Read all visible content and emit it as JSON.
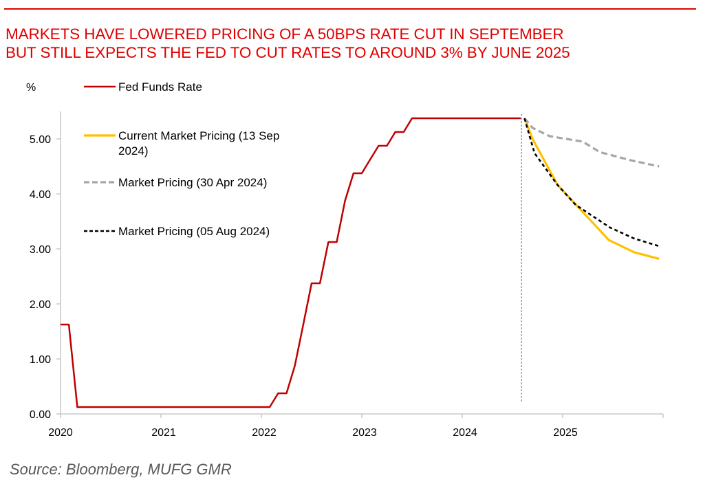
{
  "header": {
    "title_lines": [
      "MARKETS HAVE LOWERED PRICING OF A 50BPS RATE CUT IN SEPTEMBER",
      "BUT STILL EXPECTS THE FED TO CUT RATES TO AROUND 3% BY JUNE 2025"
    ],
    "accent_color": "#e00000"
  },
  "footer": {
    "source": "Source: Bloomberg, MUFG GMR"
  },
  "chart_data": {
    "type": "line",
    "title": "MARKETS HAVE LOWERED PRICING OF A 50BPS RATE CUT IN SEPTEMBER BUT STILL EXPECTS THE FED TO CUT RATES TO AROUND 3% BY JUNE 2025",
    "xlabel": "",
    "ylabel": "%",
    "xlim": [
      2020,
      2026
    ],
    "ylim": [
      0,
      5.5
    ],
    "x_ticks": [
      2020,
      2021,
      2022,
      2023,
      2024,
      2025,
      2026
    ],
    "x_tick_labels": [
      "2020",
      "2021",
      "2022",
      "2023",
      "2024",
      "2025",
      ""
    ],
    "y_ticks": [
      0,
      1,
      2,
      3,
      4,
      5
    ],
    "y_tick_labels": [
      "0.00",
      "1.00",
      "2.00",
      "3.00",
      "4.00",
      "5.00"
    ],
    "grid": false,
    "legend_position": "top-left",
    "vertical_marker": {
      "x": 2024.59,
      "color": "#4472c4",
      "style": "dashed"
    },
    "series": [
      {
        "name": "Fed Funds Rate",
        "color": "#c00000",
        "style": "solid",
        "x": [
          2020.0,
          2020.083,
          2020.167,
          2020.25,
          2020.5,
          2020.75,
          2021.0,
          2021.25,
          2021.5,
          2021.75,
          2022.0,
          2022.083,
          2022.167,
          2022.25,
          2022.333,
          2022.417,
          2022.5,
          2022.583,
          2022.667,
          2022.75,
          2022.833,
          2022.917,
          2023.0,
          2023.083,
          2023.167,
          2023.25,
          2023.333,
          2023.417,
          2023.5,
          2023.583,
          2023.75,
          2024.0,
          2024.25,
          2024.5,
          2024.583
        ],
        "values": [
          1.625,
          1.625,
          0.125,
          0.125,
          0.125,
          0.125,
          0.125,
          0.125,
          0.125,
          0.125,
          0.125,
          0.125,
          0.375,
          0.375,
          0.875,
          1.625,
          2.375,
          2.375,
          3.125,
          3.125,
          3.875,
          4.375,
          4.375,
          4.625,
          4.875,
          4.875,
          5.125,
          5.125,
          5.375,
          5.375,
          5.375,
          5.375,
          5.375,
          5.375,
          5.375
        ]
      },
      {
        "name": "Current Market Pricing (13 Sep 2024)",
        "color": "#ffc000",
        "style": "solid",
        "x": [
          2024.62,
          2024.7,
          2024.95,
          2025.46,
          2025.71,
          2025.96
        ],
        "values": [
          5.375,
          5.0,
          4.16,
          3.16,
          2.94,
          2.82
        ]
      },
      {
        "name": "Market Pricing (30 Apr 2024)",
        "color": "#a6a6a6",
        "style": "dashed",
        "x": [
          2024.62,
          2024.7,
          2024.87,
          2025.2,
          2025.37,
          2025.68,
          2025.96
        ],
        "values": [
          5.375,
          5.2,
          5.05,
          4.95,
          4.76,
          4.61,
          4.5
        ]
      },
      {
        "name": "Market Pricing (05 Aug 2024)",
        "color": "#000000",
        "style": "dashed",
        "x": [
          2024.62,
          2024.72,
          2024.95,
          2025.13,
          2025.47,
          2025.71,
          2025.96
        ],
        "values": [
          5.375,
          4.74,
          4.16,
          3.8,
          3.39,
          3.19,
          3.05
        ]
      }
    ],
    "legend": [
      {
        "label_lines": [
          "Fed Funds Rate"
        ],
        "series": 0
      },
      {
        "label_lines": [
          "Current Market Pricing (13 Sep",
          "2024)"
        ],
        "series": 1
      },
      {
        "label_lines": [
          "Market Pricing (30 Apr 2024)"
        ],
        "series": 2
      },
      {
        "label_lines": [
          "Market Pricing (05 Aug 2024)"
        ],
        "series": 3
      }
    ]
  }
}
